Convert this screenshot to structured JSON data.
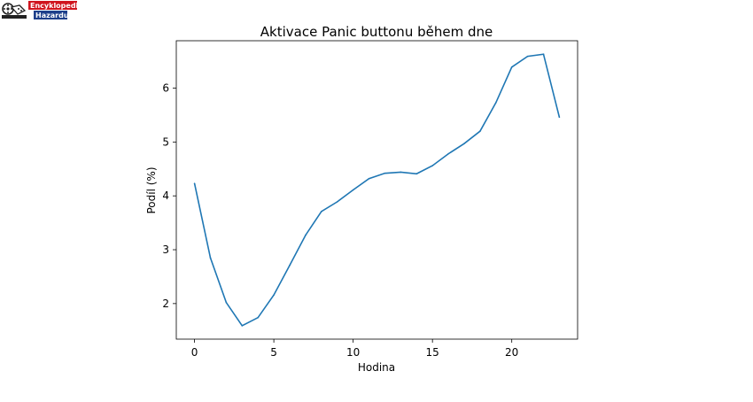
{
  "logo": {
    "line1": "Encyklopedie",
    "line2": "Hazardu",
    "accent": "#d0141e"
  },
  "chart_data": {
    "type": "line",
    "title": "Aktivace Panic buttonu během dne",
    "xlabel": "Hodina",
    "ylabel": "Podíl (%)",
    "x": [
      0,
      1,
      2,
      3,
      4,
      5,
      6,
      7,
      8,
      9,
      10,
      11,
      12,
      13,
      14,
      15,
      16,
      17,
      18,
      19,
      20,
      21,
      22,
      23
    ],
    "series": [
      {
        "values": [
          4.23,
          2.85,
          2.02,
          1.59,
          1.74,
          2.16,
          2.71,
          3.27,
          3.71,
          3.89,
          4.11,
          4.32,
          4.42,
          4.44,
          4.41,
          4.56,
          4.78,
          4.97,
          5.2,
          5.73,
          6.39,
          6.59,
          6.63,
          5.46
        ],
        "color": "#1f77b4"
      }
    ],
    "xticks": [
      0,
      5,
      10,
      15,
      20
    ],
    "yticks": [
      2,
      3,
      4,
      5,
      6
    ],
    "xlim": [
      -1.15,
      24.15
    ],
    "ylim": [
      1.34,
      6.88
    ],
    "grid": false
  }
}
